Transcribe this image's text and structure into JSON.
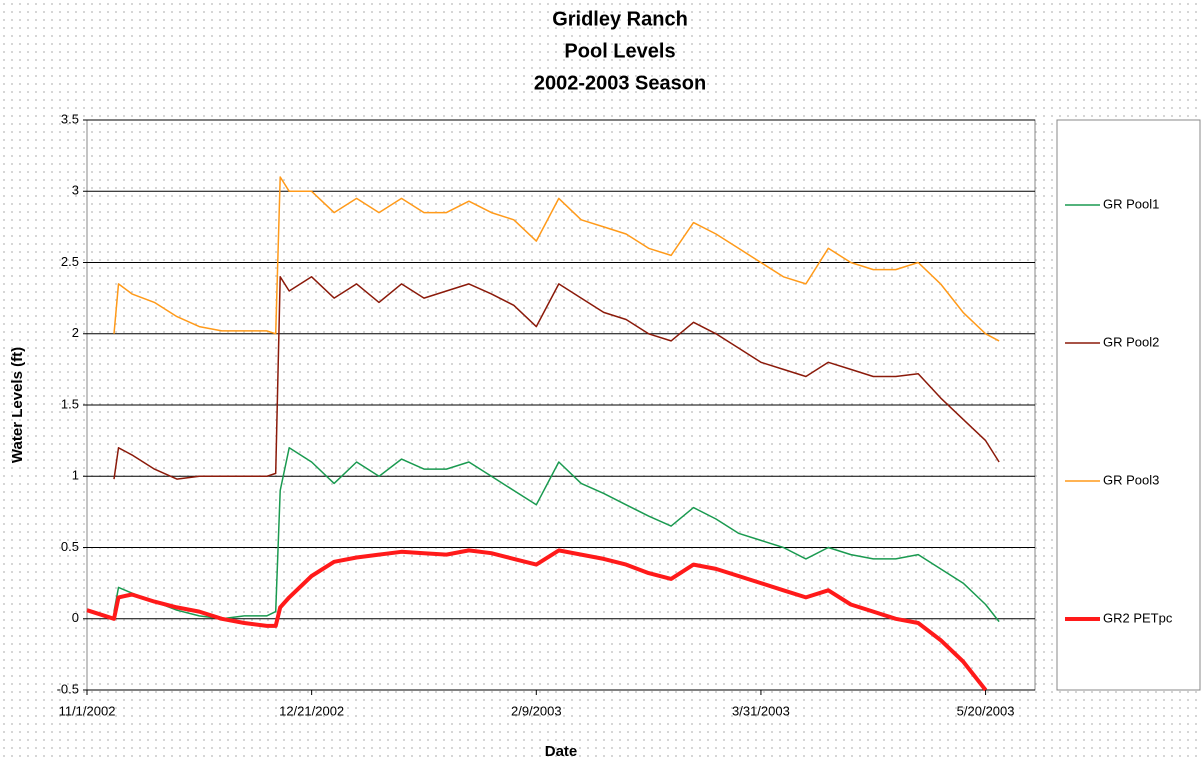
{
  "chart_data": {
    "type": "line",
    "title": [
      "Gridley Ranch",
      "Pool Levels",
      "2002-2003 Season"
    ],
    "x_label": "Date",
    "y_label": "Water Levels  (ft)",
    "x": [
      "11/1/2002",
      "11/7/2002",
      "11/8/2002",
      "11/11/2002",
      "11/16/2002",
      "11/21/2002",
      "11/26/2002",
      "12/1/2002",
      "12/6/2002",
      "12/11/2002",
      "12/13/2002",
      "12/14/2002",
      "12/16/2002",
      "12/21/2002",
      "12/26/2002",
      "12/31/2002",
      "1/5/2003",
      "1/10/2003",
      "1/15/2003",
      "1/20/2003",
      "1/25/2003",
      "1/30/2003",
      "2/4/2003",
      "2/9/2003",
      "2/14/2003",
      "2/19/2003",
      "2/24/2003",
      "3/1/2003",
      "3/6/2003",
      "3/11/2003",
      "3/16/2003",
      "3/21/2003",
      "3/26/2003",
      "3/31/2003",
      "4/5/2003",
      "4/10/2003",
      "4/15/2003",
      "4/20/2003",
      "4/25/2003",
      "4/30/2003",
      "5/5/2003",
      "5/10/2003",
      "5/15/2003",
      "5/20/2003",
      "5/23/2003"
    ],
    "series": [
      {
        "name": "GR Pool1",
        "color": "#1a9a50",
        "width": 1.5,
        "values": [
          null,
          0.05,
          0.22,
          0.18,
          0.12,
          0.06,
          0.02,
          0.0,
          0.02,
          0.02,
          0.05,
          0.9,
          1.2,
          1.1,
          0.95,
          1.1,
          1.0,
          1.12,
          1.05,
          1.05,
          1.1,
          1.0,
          0.9,
          0.8,
          1.1,
          0.95,
          0.88,
          0.8,
          0.72,
          0.65,
          0.78,
          0.7,
          0.6,
          0.55,
          0.5,
          0.42,
          0.5,
          0.45,
          0.42,
          0.42,
          0.45,
          0.35,
          0.25,
          0.1,
          -0.02
        ]
      },
      {
        "name": "GR Pool2",
        "color": "#8b1a0a",
        "width": 1.5,
        "values": [
          null,
          0.98,
          1.2,
          1.15,
          1.05,
          0.98,
          1.0,
          1.0,
          1.0,
          1.0,
          1.02,
          2.4,
          2.3,
          2.4,
          2.25,
          2.35,
          2.22,
          2.35,
          2.25,
          2.3,
          2.35,
          2.28,
          2.2,
          2.05,
          2.35,
          2.25,
          2.15,
          2.1,
          2.0,
          1.95,
          2.08,
          2.0,
          1.9,
          1.8,
          1.75,
          1.7,
          1.8,
          1.75,
          1.7,
          1.7,
          1.72,
          1.55,
          1.4,
          1.25,
          1.1
        ]
      },
      {
        "name": "GR Pool3",
        "color": "#ff9a1a",
        "width": 1.5,
        "values": [
          null,
          2.0,
          2.35,
          2.28,
          2.22,
          2.12,
          2.05,
          2.02,
          2.02,
          2.02,
          2.0,
          3.1,
          3.0,
          3.0,
          2.85,
          2.95,
          2.85,
          2.95,
          2.85,
          2.85,
          2.93,
          2.85,
          2.8,
          2.65,
          2.95,
          2.8,
          2.75,
          2.7,
          2.6,
          2.55,
          2.78,
          2.7,
          2.6,
          2.5,
          2.4,
          2.35,
          2.6,
          2.5,
          2.45,
          2.45,
          2.5,
          2.35,
          2.15,
          2.0,
          1.95
        ]
      },
      {
        "name": "GR2 PETpc",
        "color": "#ff1a1a",
        "width": 4,
        "values": [
          0.06,
          0.0,
          0.15,
          0.17,
          0.12,
          0.08,
          0.05,
          0.0,
          -0.03,
          -0.05,
          -0.05,
          0.08,
          0.15,
          0.3,
          0.4,
          0.43,
          0.45,
          0.47,
          0.46,
          0.45,
          0.48,
          0.46,
          0.42,
          0.38,
          0.48,
          0.45,
          0.42,
          0.38,
          0.32,
          0.28,
          0.38,
          0.35,
          0.3,
          0.25,
          0.2,
          0.15,
          0.2,
          0.1,
          0.05,
          0.0,
          -0.03,
          -0.15,
          -0.3,
          -0.5,
          null
        ]
      }
    ],
    "xlim": [
      "11/1/2002",
      "5/31/2003"
    ],
    "xticks": [
      "11/1/2002",
      "12/21/2002",
      "2/9/2003",
      "3/31/2003",
      "5/20/2003"
    ],
    "ylim": [
      -0.5,
      3.5
    ],
    "yticks": [
      -0.5,
      0,
      0.5,
      1,
      1.5,
      2,
      2.5,
      3,
      3.5
    ],
    "grid": true,
    "legend": "right"
  }
}
